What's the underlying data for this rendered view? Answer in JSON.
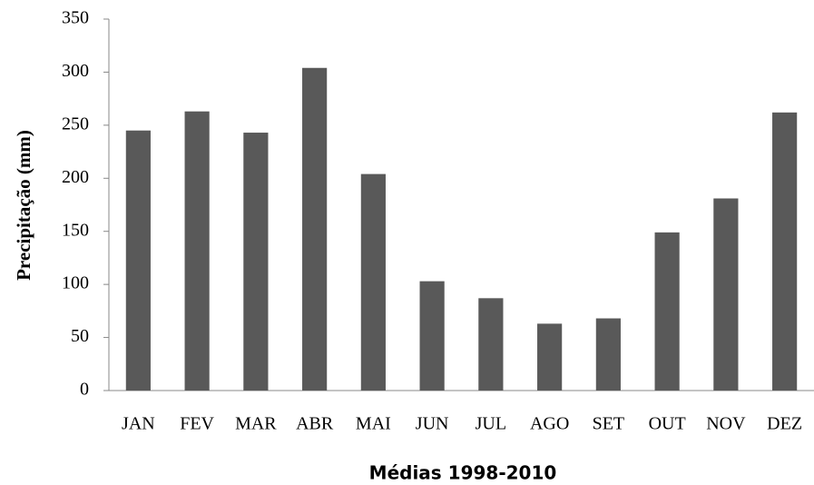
{
  "chart_data": {
    "type": "bar",
    "x_label": "Médias 1998-2010",
    "y_label": "Precipitação (mm)",
    "categories": [
      "JAN",
      "FEV",
      "MAR",
      "ABR",
      "MAI",
      "JUN",
      "JUL",
      "AGO",
      "SET",
      "OUT",
      "NOV",
      "DEZ"
    ],
    "values": [
      245,
      263,
      243,
      304,
      204,
      103,
      87,
      63,
      68,
      149,
      181,
      262
    ],
    "color": "#595959",
    "ylim": [
      0,
      350
    ],
    "yticks": [
      0,
      50,
      100,
      150,
      200,
      250,
      300,
      350
    ],
    "grid": false
  }
}
